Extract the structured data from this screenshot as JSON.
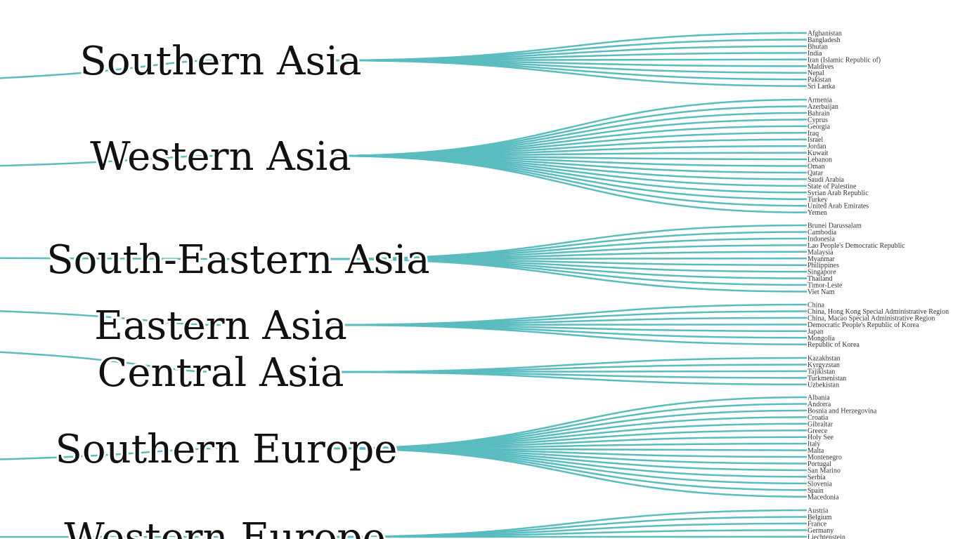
{
  "style": {
    "link_color": "#5bbcc0",
    "text_color": "#111111",
    "background": "#ffffff"
  },
  "regions": [
    {
      "name": "Southern Asia",
      "countries": [
        "Afghanistan",
        "Bangladesh",
        "Bhutan",
        "India",
        "Iran (Islamic Republic of)",
        "Maldives",
        "Nepal",
        "Pakistan",
        "Sri Lanka"
      ]
    },
    {
      "name": "Western Asia",
      "countries": [
        "Armenia",
        "Azerbaijan",
        "Bahrain",
        "Cyprus",
        "Georgia",
        "Iraq",
        "Israel",
        "Jordan",
        "Kuwait",
        "Lebanon",
        "Oman",
        "Qatar",
        "Saudi Arabia",
        "State of Palestine",
        "Syrian Arab Republic",
        "Turkey",
        "United Arab Emirates",
        "Yemen"
      ]
    },
    {
      "name": "South-Eastern Asia",
      "countries": [
        "Brunei Darussalam",
        "Cambodia",
        "Indonesia",
        "Lao People's Democratic Republic",
        "Malaysia",
        "Myanmar",
        "Philippines",
        "Singapore",
        "Thailand",
        "Timor-Leste",
        "Viet Nam"
      ]
    },
    {
      "name": "Eastern Asia",
      "countries": [
        "China",
        "China, Hong Kong Special Administrative Region",
        "China, Macao Special Administrative Region",
        "Democratic People's Republic of Korea",
        "Japan",
        "Mongolia",
        "Republic of Korea"
      ]
    },
    {
      "name": "Central Asia",
      "countries": [
        "Kazakhstan",
        "Kyrgyzstan",
        "Tajikistan",
        "Turkmenistan",
        "Uzbekistan"
      ]
    },
    {
      "name": "Southern Europe",
      "countries": [
        "Albania",
        "Andorra",
        "Bosnia and Herzegovina",
        "Croatia",
        "Gibraltar",
        "Greece",
        "Holy See",
        "Italy",
        "Malta",
        "Montenegro",
        "Portugal",
        "San Marino",
        "Serbia",
        "Slovenia",
        "Spain",
        "Macedonia"
      ]
    },
    {
      "name": "Western Europe",
      "countries": [
        "Austria",
        "Belgium",
        "France",
        "Germany",
        "Liechtenstein"
      ]
    }
  ]
}
